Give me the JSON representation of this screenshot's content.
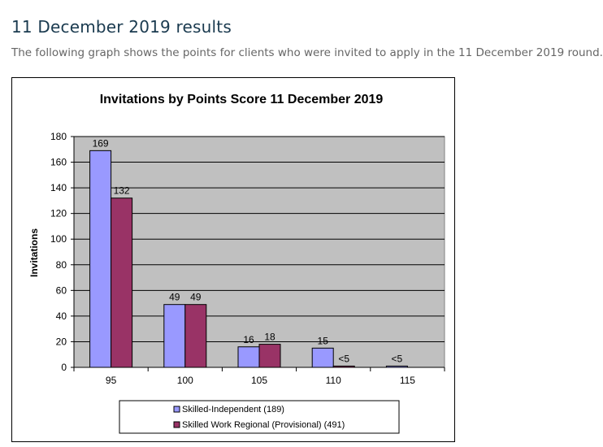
{
  "page": {
    "heading": "11 December 2019 results",
    "intro": "The following graph shows the points for clients who were invited to apply in the 11 December 2019 round."
  },
  "chart_data": {
    "type": "bar",
    "title": "Invitations by Points Score 11 December 2019",
    "xlabel": "",
    "ylabel": "Invitations",
    "categories": [
      "95",
      "100",
      "105",
      "110",
      "115"
    ],
    "ylim": [
      0,
      180
    ],
    "yticks": [
      0,
      20,
      40,
      60,
      80,
      100,
      120,
      140,
      160,
      180
    ],
    "grid": true,
    "legend_position": "bottom",
    "series": [
      {
        "name": "Skilled-Independent (189)",
        "color": "#9999ff",
        "values": [
          169,
          49,
          16,
          15,
          1
        ],
        "labels": [
          "169",
          "49",
          "16",
          "15",
          "<5"
        ]
      },
      {
        "name": "Skilled Work Regional (Provisional) (491)",
        "color": "#993366",
        "values": [
          132,
          49,
          18,
          1,
          0
        ],
        "labels": [
          "132",
          "49",
          "18",
          "<5",
          ""
        ]
      }
    ],
    "plot_background": "#c0c0c0"
  }
}
